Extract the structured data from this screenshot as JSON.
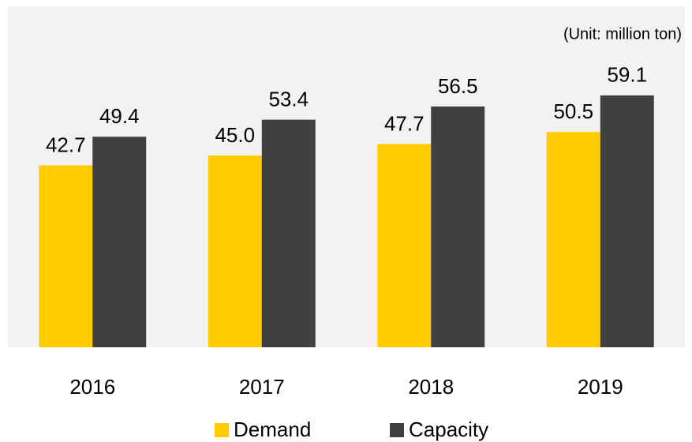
{
  "chart_data": {
    "type": "bar",
    "unit": "(Unit: million ton)",
    "categories": [
      "2016",
      "2017",
      "2018",
      "2019"
    ],
    "series": [
      {
        "name": "Demand",
        "color": "#ffcc00",
        "values": [
          42.7,
          45.0,
          47.7,
          50.5
        ],
        "value_labels": [
          "42.7",
          "45.0",
          "47.7",
          "50.5"
        ]
      },
      {
        "name": "Capacity",
        "color": "#404040",
        "values": [
          49.4,
          53.4,
          56.5,
          59.1
        ],
        "value_labels": [
          "49.4",
          "53.4",
          "56.5",
          "59.1"
        ]
      }
    ],
    "ylim": [
      0,
      80
    ],
    "legend": "bottom"
  }
}
